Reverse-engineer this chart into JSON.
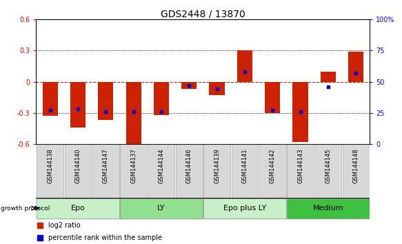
{
  "title": "GDS2448 / 13870",
  "samples": [
    "GSM144138",
    "GSM144140",
    "GSM144147",
    "GSM144137",
    "GSM144144",
    "GSM144146",
    "GSM144139",
    "GSM144141",
    "GSM144142",
    "GSM144143",
    "GSM144145",
    "GSM144148"
  ],
  "log2_ratio": [
    -0.33,
    -0.44,
    -0.37,
    -0.6,
    -0.32,
    -0.07,
    -0.13,
    0.3,
    -0.3,
    -0.58,
    0.1,
    0.29
  ],
  "percentile_rank": [
    27,
    28,
    26,
    26,
    26,
    47,
    44,
    58,
    27,
    26,
    46,
    57
  ],
  "groups": [
    {
      "label": "Epo",
      "start": 0,
      "end": 3,
      "color": "#c8f0c8"
    },
    {
      "label": "LY",
      "start": 3,
      "end": 6,
      "color": "#90e090"
    },
    {
      "label": "Epo plus LY",
      "start": 6,
      "end": 9,
      "color": "#c8f0c8"
    },
    {
      "label": "Medium",
      "start": 9,
      "end": 12,
      "color": "#40c040"
    }
  ],
  "ylim_left": [
    -0.6,
    0.6
  ],
  "yticks_left": [
    -0.6,
    -0.3,
    0.0,
    0.3,
    0.6
  ],
  "ytick_labels_left": [
    "-0.6",
    "-0.3",
    "0",
    "0.3",
    "0.6"
  ],
  "yticks_right": [
    0,
    25,
    50,
    75,
    100
  ],
  "ytick_labels_right": [
    "0",
    "25",
    "50",
    "75",
    "100%"
  ],
  "bar_color": "#cc2200",
  "dot_color": "#0000cc",
  "bar_width": 0.55,
  "background_color": "#ffffff",
  "group_label_fontsize": 8,
  "title_fontsize": 10,
  "tick_fontsize": 7,
  "sample_fontsize": 6,
  "legend_fontsize": 7,
  "zero_line_color": "#cc2200",
  "grid_color": "#000000"
}
